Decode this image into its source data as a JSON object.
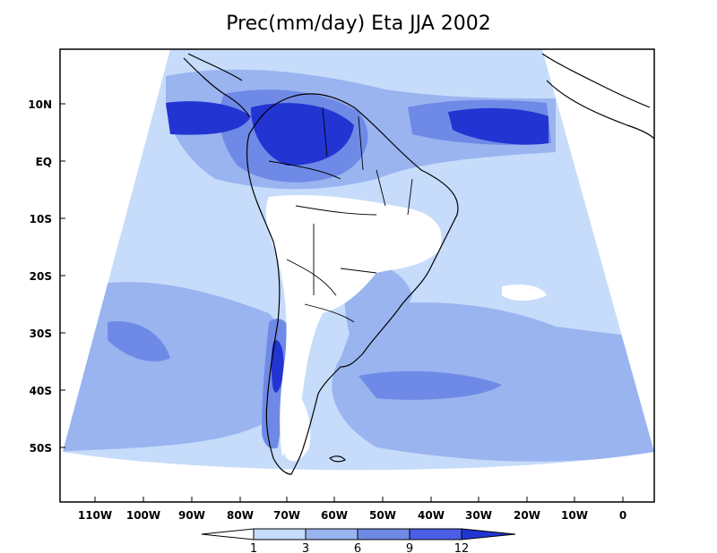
{
  "title": "Prec(mm/day) Eta JJA 2002",
  "map": {
    "projection": "conic (cone-shaped regional domain)",
    "model": "Eta",
    "season": "JJA",
    "year": "2002",
    "variable": "Prec(mm/day)",
    "lat_ticks": [
      "10N",
      "EQ",
      "10S",
      "20S",
      "30S",
      "40S",
      "50S"
    ],
    "lon_ticks": [
      "110W",
      "100W",
      "90W",
      "80W",
      "70W",
      "60W",
      "50W",
      "40W",
      "30W",
      "20W",
      "10W",
      "0"
    ]
  },
  "colorbar": {
    "labels": [
      "1",
      "3",
      "6",
      "9",
      "12"
    ],
    "colors": [
      "#ffffff",
      "#c6dcfa",
      "#9ab4f0",
      "#6f8ae6",
      "#4a5ee6",
      "#2234d2"
    ]
  },
  "colors": {
    "ocean_light": "#c6dcfa",
    "level2": "#9ab4f0",
    "level3": "#6f8ae6",
    "level4": "#4a5ee6",
    "level5": "#2234d2",
    "coast": "#000000"
  }
}
